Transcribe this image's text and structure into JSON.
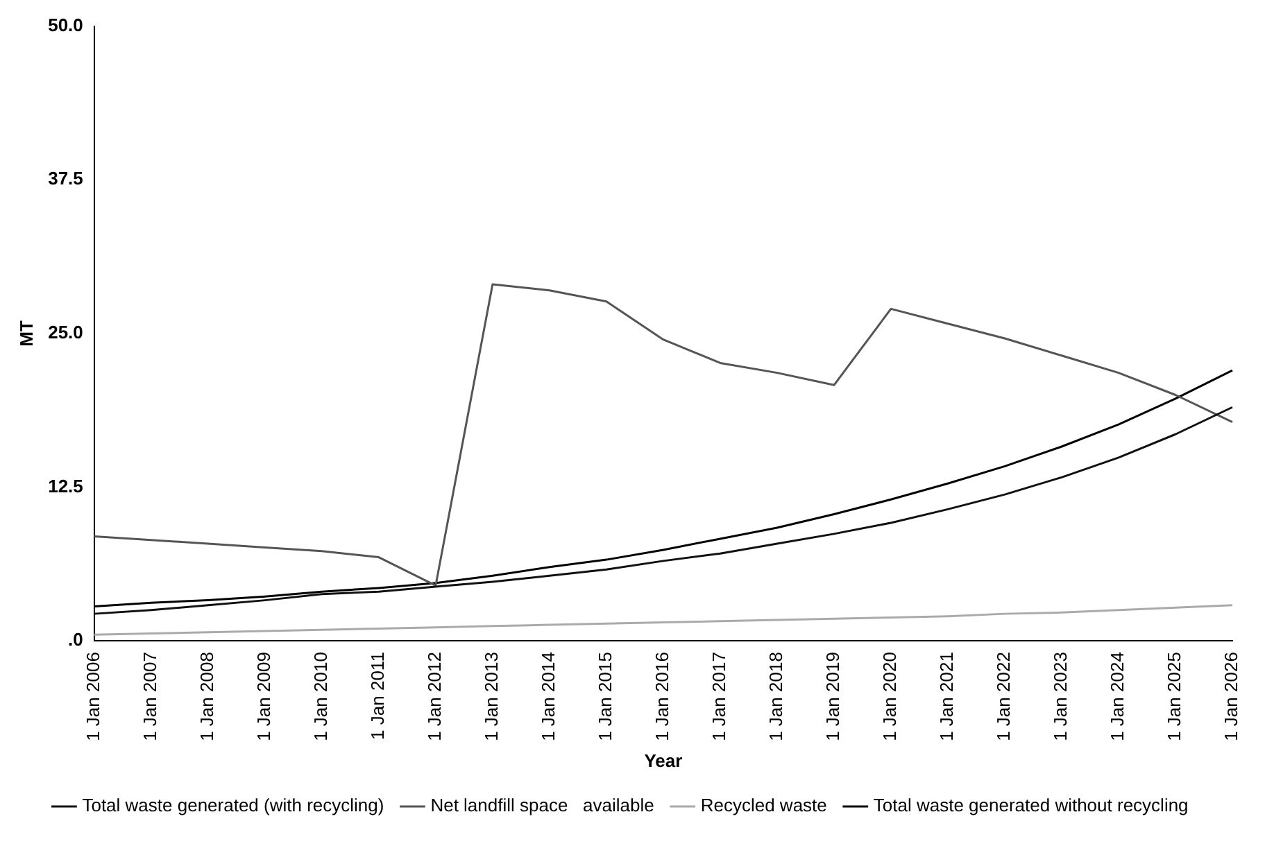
{
  "chart_data": {
    "type": "line",
    "xlabel": "Year",
    "ylabel": "MT",
    "categories": [
      "1 Jan 2006",
      "1 Jan 2007",
      "1 Jan 2008",
      "1 Jan 2009",
      "1 Jan 2010",
      "1 Jan 2011",
      "1 Jan 2012",
      "1 Jan 2013",
      "1 Jan 2014",
      "1 Jan 2015",
      "1 Jan 2016",
      "1 Jan 2017",
      "1 Jan 2018",
      "1 Jan 2019",
      "1 Jan 2020",
      "1 Jan 2021",
      "1 Jan 2022",
      "1 Jan 2023",
      "1 Jan 2024",
      "1 Jan 2025",
      "1 Jan 2026"
    ],
    "series": [
      {
        "name": "Total waste generated (with recycling)",
        "color": "#111111",
        "values": [
          2.2,
          2.5,
          2.9,
          3.3,
          3.8,
          4.0,
          4.4,
          4.8,
          5.3,
          5.8,
          6.5,
          7.1,
          7.9,
          8.7,
          9.6,
          10.7,
          11.9,
          13.3,
          14.9,
          16.8,
          19.0
        ]
      },
      {
        "name": "Net landfill space   available",
        "color": "#555555",
        "values": [
          8.5,
          8.2,
          7.9,
          7.6,
          7.3,
          6.8,
          4.5,
          29.0,
          28.5,
          27.6,
          24.5,
          22.6,
          21.8,
          20.8,
          27.0,
          25.8,
          24.6,
          23.2,
          21.8,
          20.0,
          17.8
        ]
      },
      {
        "name": "Recycled waste",
        "color": "#aaaaaa",
        "values": [
          0.5,
          0.6,
          0.7,
          0.8,
          0.9,
          1.0,
          1.1,
          1.2,
          1.3,
          1.4,
          1.5,
          1.6,
          1.7,
          1.8,
          1.9,
          2.0,
          2.2,
          2.3,
          2.5,
          2.7,
          2.9
        ]
      },
      {
        "name": "Total waste generated without recycling",
        "color": "#000000",
        "values": [
          2.8,
          3.1,
          3.3,
          3.6,
          4.0,
          4.3,
          4.7,
          5.3,
          6.0,
          6.6,
          7.4,
          8.3,
          9.2,
          10.3,
          11.5,
          12.8,
          14.2,
          15.8,
          17.6,
          19.7,
          22.0
        ]
      }
    ],
    "ylim": [
      0,
      50
    ],
    "yticks": [
      {
        "value": 0,
        "label": ".0"
      },
      {
        "value": 12.5,
        "label": "12.5"
      },
      {
        "value": 25,
        "label": "25.0"
      },
      {
        "value": 37.5,
        "label": "37.5"
      },
      {
        "value": 50,
        "label": "50.0"
      }
    ],
    "grid": false,
    "legend": "bottom",
    "marker": "none",
    "line_style": "solid"
  }
}
